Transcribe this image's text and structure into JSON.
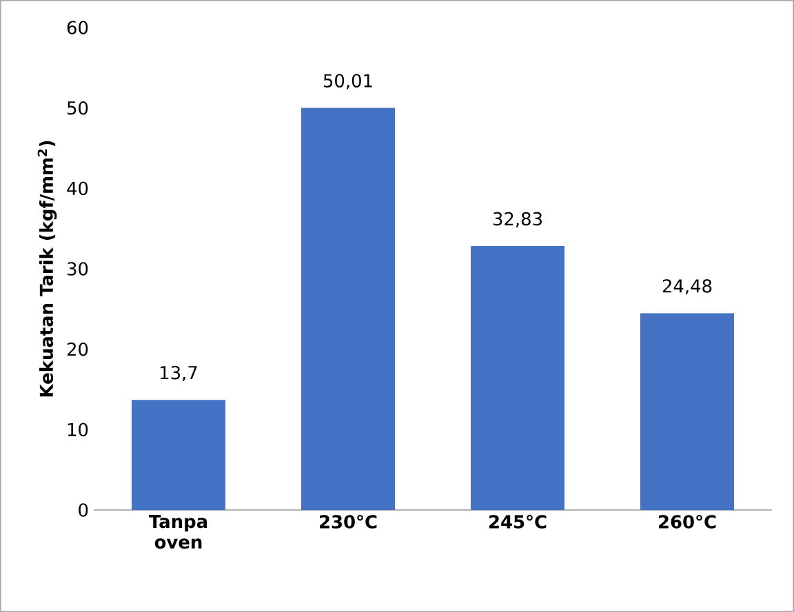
{
  "chart_data": {
    "type": "bar",
    "ylabel": "Kekuatan Tarik (kgf/mm$^{2}$)",
    "categories": [
      "Tanpa oven",
      "230°C",
      "245°C",
      "260°C"
    ],
    "values": [
      13.7,
      50.01,
      32.83,
      24.48
    ],
    "color": "#4472c4",
    "value_labels": [
      "13,7",
      "50,01",
      "32,83",
      "24,48"
    ],
    "ylim": [
      0,
      60
    ],
    "yticks": [
      0,
      10,
      20,
      30,
      40,
      50,
      60
    ],
    "grid": false
  }
}
